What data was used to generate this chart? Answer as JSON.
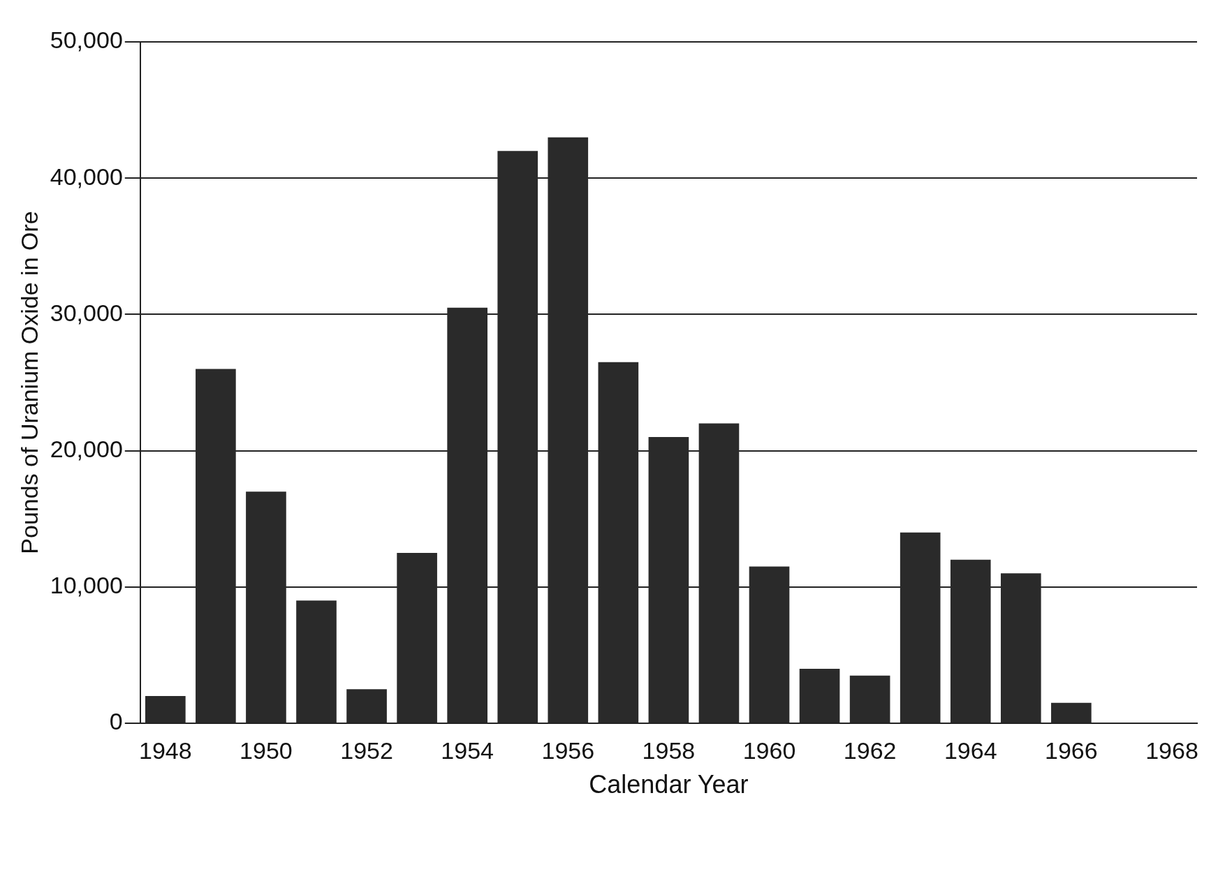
{
  "chart_data": {
    "type": "bar",
    "xlabel": "Calendar Year",
    "ylabel": "Pounds of Uranium Oxide in Ore",
    "categories": [
      "1948",
      null,
      "1950",
      null,
      "1952",
      null,
      "1954",
      null,
      "1956",
      null,
      "1958",
      null,
      "1960",
      null,
      "1962",
      null,
      "1964",
      null,
      "1966",
      null,
      "1968"
    ],
    "values": [
      2000,
      26000,
      17000,
      9000,
      2500,
      12500,
      30500,
      42000,
      43000,
      26500,
      21000,
      22000,
      11500,
      4000,
      3500,
      14000,
      12000,
      11000,
      1500,
      null,
      null
    ],
    "color": "#2a2a2a",
    "ylim": [
      0,
      50000
    ],
    "yticks": [
      {
        "value": 0,
        "label": "0"
      },
      {
        "value": 10000,
        "label": "10,000"
      },
      {
        "value": 20000,
        "label": "20,000"
      },
      {
        "value": 30000,
        "label": "30,000"
      },
      {
        "value": 40000,
        "label": "40,000"
      },
      {
        "value": 50000,
        "label": "50,000"
      }
    ],
    "grid": "y",
    "legend": false
  }
}
